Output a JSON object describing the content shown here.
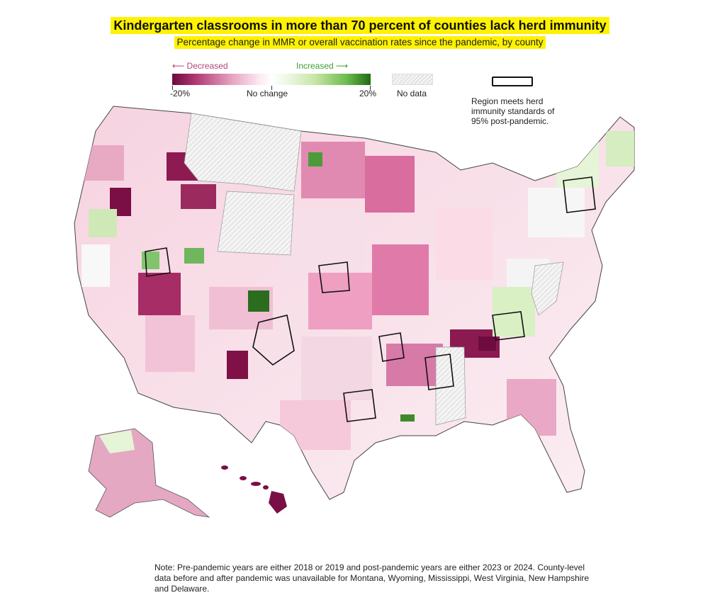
{
  "header": {
    "title": "Kindergarten classrooms in more than 70 percent of counties lack herd immunity",
    "subtitle": "Percentage change in MMR or overall vaccination rates since the pandemic, by county"
  },
  "legend": {
    "decreased_label": "Decreased",
    "increased_label": "Increased",
    "min_label": "-20%",
    "mid_label": "No change",
    "max_label": "20%",
    "nodata_label": "No data",
    "herd_label": "Region meets herd immunity standards of 95% post-pandemic.",
    "scale_min_pct": -20,
    "scale_max_pct": 20
  },
  "colors": {
    "highlight": "#fff200",
    "decreased_dark": "#6b0a3d",
    "decreased_light": "#f2c6d8",
    "no_change": "#ffffff",
    "increased_light": "#c7e6a6",
    "increased_dark": "#1e6b12",
    "no_data_hatch": "#d8d8d8",
    "herd_outline": "#111111"
  },
  "map": {
    "region": "United States counties",
    "no_data_states": [
      "Montana",
      "Wyoming",
      "Mississippi",
      "West Virginia",
      "New Hampshire",
      "Delaware"
    ]
  },
  "footer": {
    "note": "Note: Pre-pandemic years are either 2018 or 2019 and post-pandemic years are either 2023 or 2024. County-level data before and after pandemic was unavailable for Montana, Wyoming, Mississippi, West Virginia, New Hampshire and Delaware."
  }
}
